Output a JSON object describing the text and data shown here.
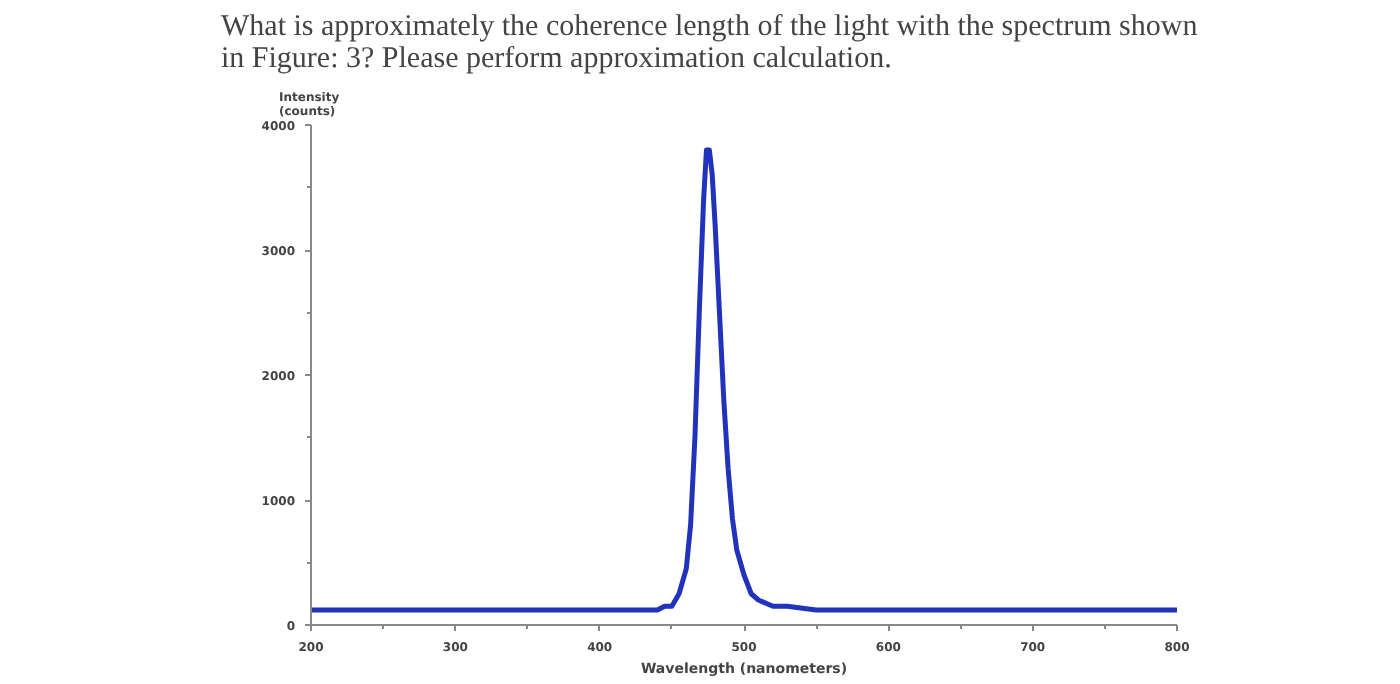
{
  "chart_data": {
    "type": "line",
    "title": "What is approximately the coherence length of the light with the spectrum shown\nin Figure: 3? Please perform approximation calculation.",
    "xlabel": "Wavelength (nanometers)",
    "ylabel": "Intensity\n(counts)",
    "x": [
      200,
      250,
      300,
      350,
      400,
      430,
      440,
      445,
      450,
      455,
      460,
      463,
      466,
      469,
      472,
      474,
      476,
      478,
      480,
      483,
      486,
      489,
      492,
      495,
      500,
      505,
      510,
      520,
      530,
      550,
      600,
      650,
      700,
      750,
      800
    ],
    "series": [
      {
        "color": "#2233bb",
        "values": [
          120,
          120,
          120,
          120,
          120,
          120,
          120,
          150,
          150,
          250,
          450,
          800,
          1500,
          2500,
          3400,
          3800,
          3800,
          3600,
          3200,
          2500,
          1800,
          1250,
          850,
          600,
          400,
          250,
          200,
          150,
          150,
          120,
          120,
          120,
          120,
          120,
          120
        ]
      }
    ],
    "xlim": [
      200,
      800
    ],
    "ylim": [
      0,
      4000
    ],
    "xticks": [
      200,
      300,
      400,
      500,
      600,
      700,
      800
    ],
    "yticks": [
      0,
      1000,
      2000,
      3000,
      4000
    ],
    "grid": false,
    "marker": "none",
    "line_style": "solid"
  }
}
